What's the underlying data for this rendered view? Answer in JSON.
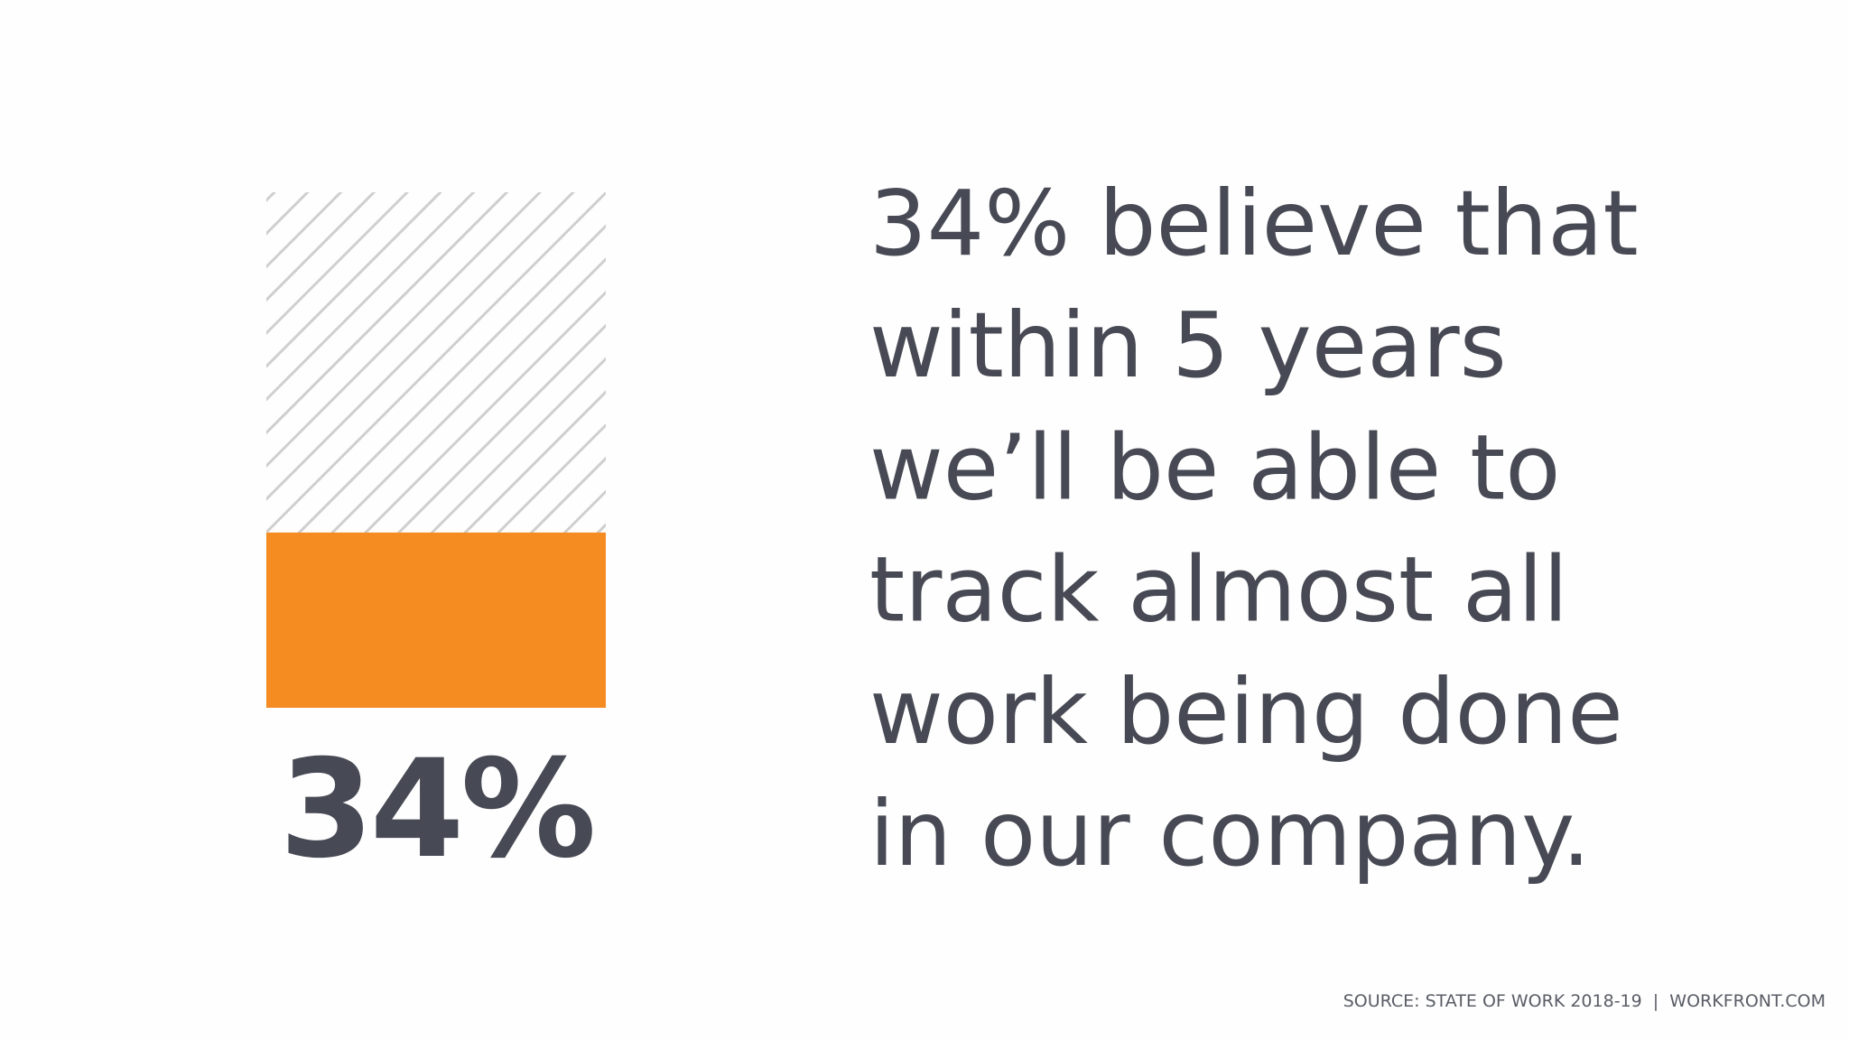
{
  "chart_data": {
    "type": "bar",
    "values": [
      34
    ],
    "value_labels": [
      "34%"
    ],
    "color": "#f48c22",
    "ylim": [
      0,
      100
    ],
    "text_lines": [
      "34% believe that",
      "within 5 years",
      "we’ll be able to",
      "track almost all",
      "work being done",
      "in our company."
    ],
    "source": "SOURCE: STATE OF WORK 2018-19  |  WORKFRONT.COM"
  }
}
